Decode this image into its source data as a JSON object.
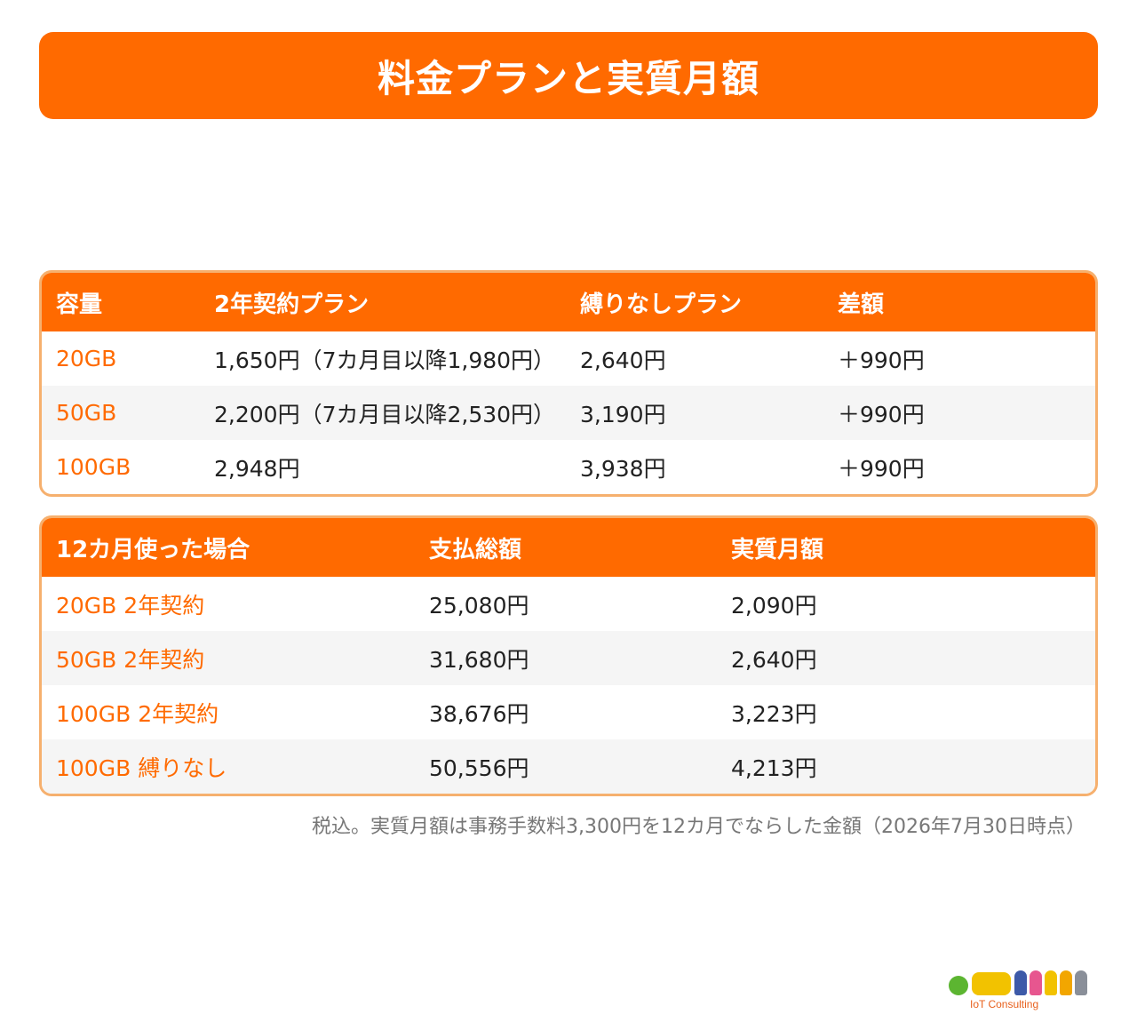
{
  "title": "料金プランと実質月額",
  "plans_table": {
    "headers": [
      "容量",
      "2年契約プラン",
      "縛りなしプラン",
      "差額"
    ],
    "rows": [
      {
        "capacity": "20GB",
        "two_year": "1,650円（7カ月目以降1,980円）",
        "no_contract": "2,640円",
        "diff": "＋990円"
      },
      {
        "capacity": "50GB",
        "two_year": "2,200円（7カ月目以降2,530円）",
        "no_contract": "3,190円",
        "diff": "＋990円"
      },
      {
        "capacity": "100GB",
        "two_year": "2,948円",
        "no_contract": "3,938円",
        "diff": "＋990円"
      }
    ]
  },
  "annual_table": {
    "headers": [
      "12カ月使った場合",
      "支払総額",
      "実質月額"
    ],
    "rows": [
      {
        "case": "20GB 2年契約",
        "total": "25,080円",
        "monthly": "2,090円"
      },
      {
        "case": "50GB 2年契約",
        "total": "31,680円",
        "monthly": "2,640円"
      },
      {
        "case": "100GB 2年契約",
        "total": "38,676円",
        "monthly": "3,223円"
      },
      {
        "case": "100GB 縛りなし",
        "total": "50,556円",
        "monthly": "4,213円"
      }
    ]
  },
  "footnote": "税込。実質月額は事務手数料3,300円を12カ月でならした金額（2026年7月30日時点）",
  "logo": {
    "text": "IoT Consulting",
    "colors": {
      "accent": "#ff6a00",
      "green": "#5cb531",
      "yellow": "#f2c200"
    }
  }
}
